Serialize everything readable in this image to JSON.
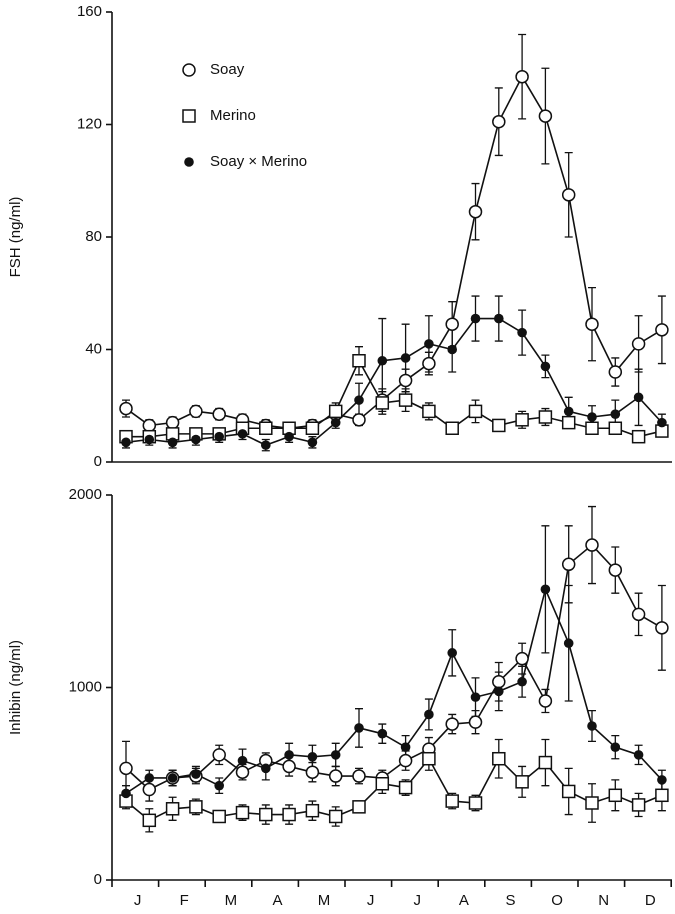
{
  "chart_data": [
    {
      "type": "line",
      "y_label": "FSH (ng/ml)",
      "categories": [
        null,
        null,
        null,
        null,
        null,
        null,
        null,
        null,
        null,
        null,
        null,
        null,
        null,
        null,
        null,
        null,
        null,
        null,
        null,
        null,
        null,
        null,
        null,
        null
      ],
      "ylim": [
        0,
        160
      ],
      "yticks": [
        0,
        40,
        80,
        120,
        160
      ],
      "series": [
        {
          "name": "Soay",
          "marker": "circle-open",
          "color": "#111",
          "values": [
            19,
            13,
            14,
            18,
            17,
            15,
            13,
            12,
            13,
            17,
            15,
            22,
            29,
            35,
            49,
            89,
            121,
            137,
            123,
            95,
            49,
            32,
            42,
            47
          ],
          "errors": [
            3,
            2,
            2,
            2,
            2,
            2,
            2,
            2,
            2,
            3,
            2,
            4,
            4,
            4,
            8,
            10,
            12,
            15,
            17,
            15,
            13,
            5,
            10,
            12
          ]
        },
        {
          "name": "Merino",
          "marker": "square-open",
          "color": "#111",
          "values": [
            9,
            9,
            10,
            10,
            10,
            12,
            12,
            12,
            12,
            18,
            36,
            21,
            22,
            18,
            12,
            18,
            13,
            15,
            16,
            14,
            12,
            12,
            9,
            11
          ],
          "errors": [
            2,
            2,
            2,
            2,
            2,
            2,
            2,
            2,
            2,
            3,
            5,
            4,
            4,
            3,
            2,
            4,
            2,
            3,
            3,
            2,
            2,
            2,
            2,
            2
          ]
        },
        {
          "name": "Soay × Merino",
          "marker": "circle-filled",
          "color": "#111",
          "values": [
            7,
            8,
            7,
            8,
            9,
            10,
            6,
            9,
            7,
            14,
            22,
            36,
            37,
            42,
            40,
            51,
            51,
            46,
            34,
            18,
            16,
            17,
            23,
            14
          ],
          "errors": [
            2,
            2,
            2,
            2,
            2,
            2,
            2,
            2,
            2,
            2,
            6,
            15,
            12,
            10,
            8,
            8,
            8,
            8,
            4,
            5,
            4,
            5,
            10,
            3
          ]
        }
      ]
    },
    {
      "type": "line",
      "y_label": "Inhibin (ng/ml)",
      "categories": [
        "J",
        null,
        "F",
        null,
        "M",
        null,
        "A",
        null,
        "M",
        null,
        "J",
        null,
        "J",
        null,
        "A",
        null,
        "S",
        null,
        "O",
        null,
        "N",
        null,
        "D",
        null
      ],
      "ylim": [
        0,
        2000
      ],
      "yticks": [
        0,
        1000,
        2000
      ],
      "series": [
        {
          "marker": "circle-open",
          "color": "#111",
          "values": [
            580,
            470,
            530,
            540,
            650,
            560,
            620,
            590,
            560,
            540,
            540,
            530,
            620,
            680,
            810,
            820,
            1030,
            1150,
            930,
            1640,
            1740,
            1610,
            1380,
            1310
          ],
          "errors": [
            140,
            60,
            40,
            40,
            50,
            40,
            40,
            50,
            50,
            50,
            40,
            40,
            50,
            60,
            50,
            60,
            100,
            80,
            60,
            200,
            200,
            120,
            110,
            220
          ]
        },
        {
          "marker": "square-open",
          "color": "#111",
          "values": [
            410,
            310,
            370,
            380,
            330,
            350,
            340,
            340,
            360,
            330,
            380,
            500,
            480,
            630,
            410,
            400,
            630,
            510,
            610,
            460,
            400,
            440,
            390,
            440
          ],
          "errors": [
            40,
            60,
            60,
            40,
            30,
            40,
            50,
            50,
            50,
            50,
            30,
            50,
            40,
            60,
            40,
            40,
            100,
            80,
            120,
            120,
            100,
            80,
            60,
            80
          ]
        },
        {
          "marker": "circle-filled",
          "color": "#111",
          "values": [
            450,
            530,
            530,
            550,
            490,
            620,
            580,
            650,
            640,
            650,
            790,
            760,
            690,
            860,
            1180,
            950,
            980,
            1030,
            1510,
            1230,
            800,
            690,
            650,
            520
          ],
          "errors": [
            40,
            40,
            40,
            40,
            40,
            60,
            60,
            60,
            60,
            60,
            100,
            50,
            60,
            80,
            120,
            100,
            100,
            80,
            330,
            300,
            80,
            60,
            50,
            50
          ]
        }
      ]
    }
  ]
}
